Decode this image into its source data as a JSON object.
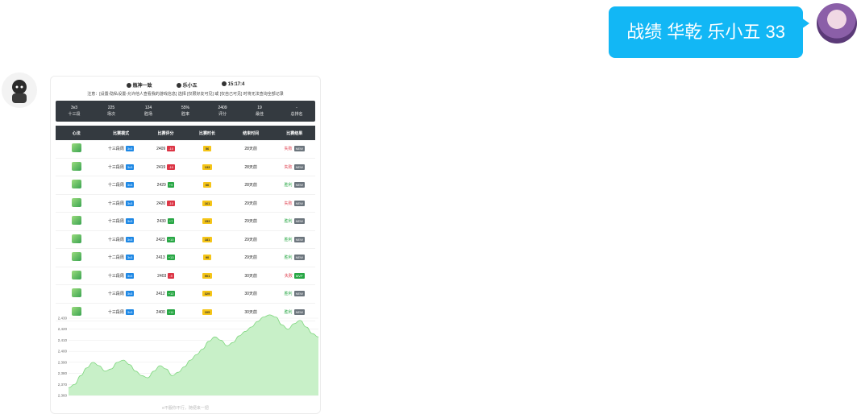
{
  "message": {
    "text": "战绩 华乾 乐小五 33"
  },
  "card": {
    "header": {
      "server": "瓶神一致",
      "player": "乐小五",
      "time": "15:17:4"
    },
    "notice": "注意：[设置-隐私设置-允许他人查看我的游戏信息] 选择 [仅限好友可见] 或 [仅自己可见] 时将无法查询全部记录",
    "stats": [
      {
        "value": "3v3",
        "label": "十三段"
      },
      {
        "value": "225",
        "label": "场次"
      },
      {
        "value": "124",
        "label": "胜场"
      },
      {
        "value": "55%",
        "label": "胜率"
      },
      {
        "value": "2409",
        "label": "评分"
      },
      {
        "value": "19",
        "label": "最佳"
      },
      {
        "value": "-",
        "label": "总排名"
      }
    ],
    "table_headers": [
      "心法",
      "比赛模式",
      "比赛评分",
      "比赛时长",
      "结束时间",
      "比赛结果"
    ],
    "rows": [
      {
        "mode": "十三段周",
        "tag": "3v3",
        "score": "2409",
        "delta": "-10",
        "delta_type": "neg",
        "dur": "56",
        "end": "28天前",
        "result": "失败",
        "result_type": "loss",
        "badge": "NEW",
        "badge_type": "gray"
      },
      {
        "mode": "十三段周",
        "tag": "3v3",
        "score": "2419",
        "delta": "-10",
        "delta_type": "neg",
        "dur": "133",
        "end": "28天前",
        "result": "失败",
        "result_type": "loss",
        "badge": "NEW",
        "badge_type": "gray"
      },
      {
        "mode": "十二段周",
        "tag": "3v3",
        "score": "2429",
        "delta": "+9",
        "delta_type": "pos",
        "dur": "66",
        "end": "28天前",
        "result": "胜利",
        "result_type": "win",
        "badge": "NEW",
        "badge_type": "gray"
      },
      {
        "mode": "十三段周",
        "tag": "3v3",
        "score": "2420",
        "delta": "-10",
        "delta_type": "neg",
        "dur": "161",
        "end": "29天前",
        "result": "失败",
        "result_type": "loss",
        "badge": "NEW",
        "badge_type": "gray"
      },
      {
        "mode": "十三段周",
        "tag": "3v3",
        "score": "2430",
        "delta": "+7",
        "delta_type": "pos",
        "dur": "153",
        "end": "29天前",
        "result": "胜利",
        "result_type": "win",
        "badge": "NEW",
        "badge_type": "gray"
      },
      {
        "mode": "十三段周",
        "tag": "3v3",
        "score": "2423",
        "delta": "+10",
        "delta_type": "pos",
        "dur": "181",
        "end": "29天前",
        "result": "胜利",
        "result_type": "win",
        "badge": "NEW",
        "badge_type": "gray"
      },
      {
        "mode": "十二段周",
        "tag": "3v3",
        "score": "2413",
        "delta": "+13",
        "delta_type": "pos",
        "dur": "90",
        "end": "29天前",
        "result": "胜利",
        "result_type": "win",
        "badge": "NEW",
        "badge_type": "gray"
      },
      {
        "mode": "十三段周",
        "tag": "3v3",
        "score": "2403",
        "delta": "-9",
        "delta_type": "neg",
        "dur": "901",
        "end": "30天前",
        "result": "失败",
        "result_type": "loss",
        "badge": "MVP",
        "badge_type": "green"
      },
      {
        "mode": "十三段周",
        "tag": "3v3",
        "score": "2412",
        "delta": "+12",
        "delta_type": "pos",
        "dur": "329",
        "end": "30天前",
        "result": "胜利",
        "result_type": "win",
        "badge": "NEW",
        "badge_type": "gray"
      },
      {
        "mode": "十三段周",
        "tag": "3v3",
        "score": "2400",
        "delta": "+11",
        "delta_type": "pos",
        "dur": "105",
        "end": "30天前",
        "result": "胜利",
        "result_type": "win",
        "badge": "NEW",
        "badge_type": "gray"
      }
    ],
    "footer": "e不服你不行，随便来一把"
  },
  "chart_data": {
    "type": "area",
    "title": "",
    "xlabel": "",
    "ylabel": "",
    "ylim": [
      2360,
      2430
    ],
    "yticks": [
      "2,430",
      "2,420",
      "2,410",
      "2,400",
      "2,390",
      "2,380",
      "2,370",
      "2,360"
    ],
    "values": [
      2367,
      2370,
      2378,
      2385,
      2390,
      2387,
      2382,
      2384,
      2390,
      2392,
      2388,
      2382,
      2378,
      2376,
      2382,
      2387,
      2384,
      2378,
      2381,
      2386,
      2392,
      2397,
      2402,
      2409,
      2413,
      2410,
      2405,
      2408,
      2414,
      2418,
      2422,
      2427,
      2431,
      2433,
      2431,
      2424,
      2420,
      2425,
      2428,
      2422,
      2416,
      2413
    ]
  },
  "colors": {
    "bubble": "#12b7f5",
    "area_fill": "#c8f0c8",
    "area_stroke": "#7fd77f",
    "dark": "#343a40"
  }
}
